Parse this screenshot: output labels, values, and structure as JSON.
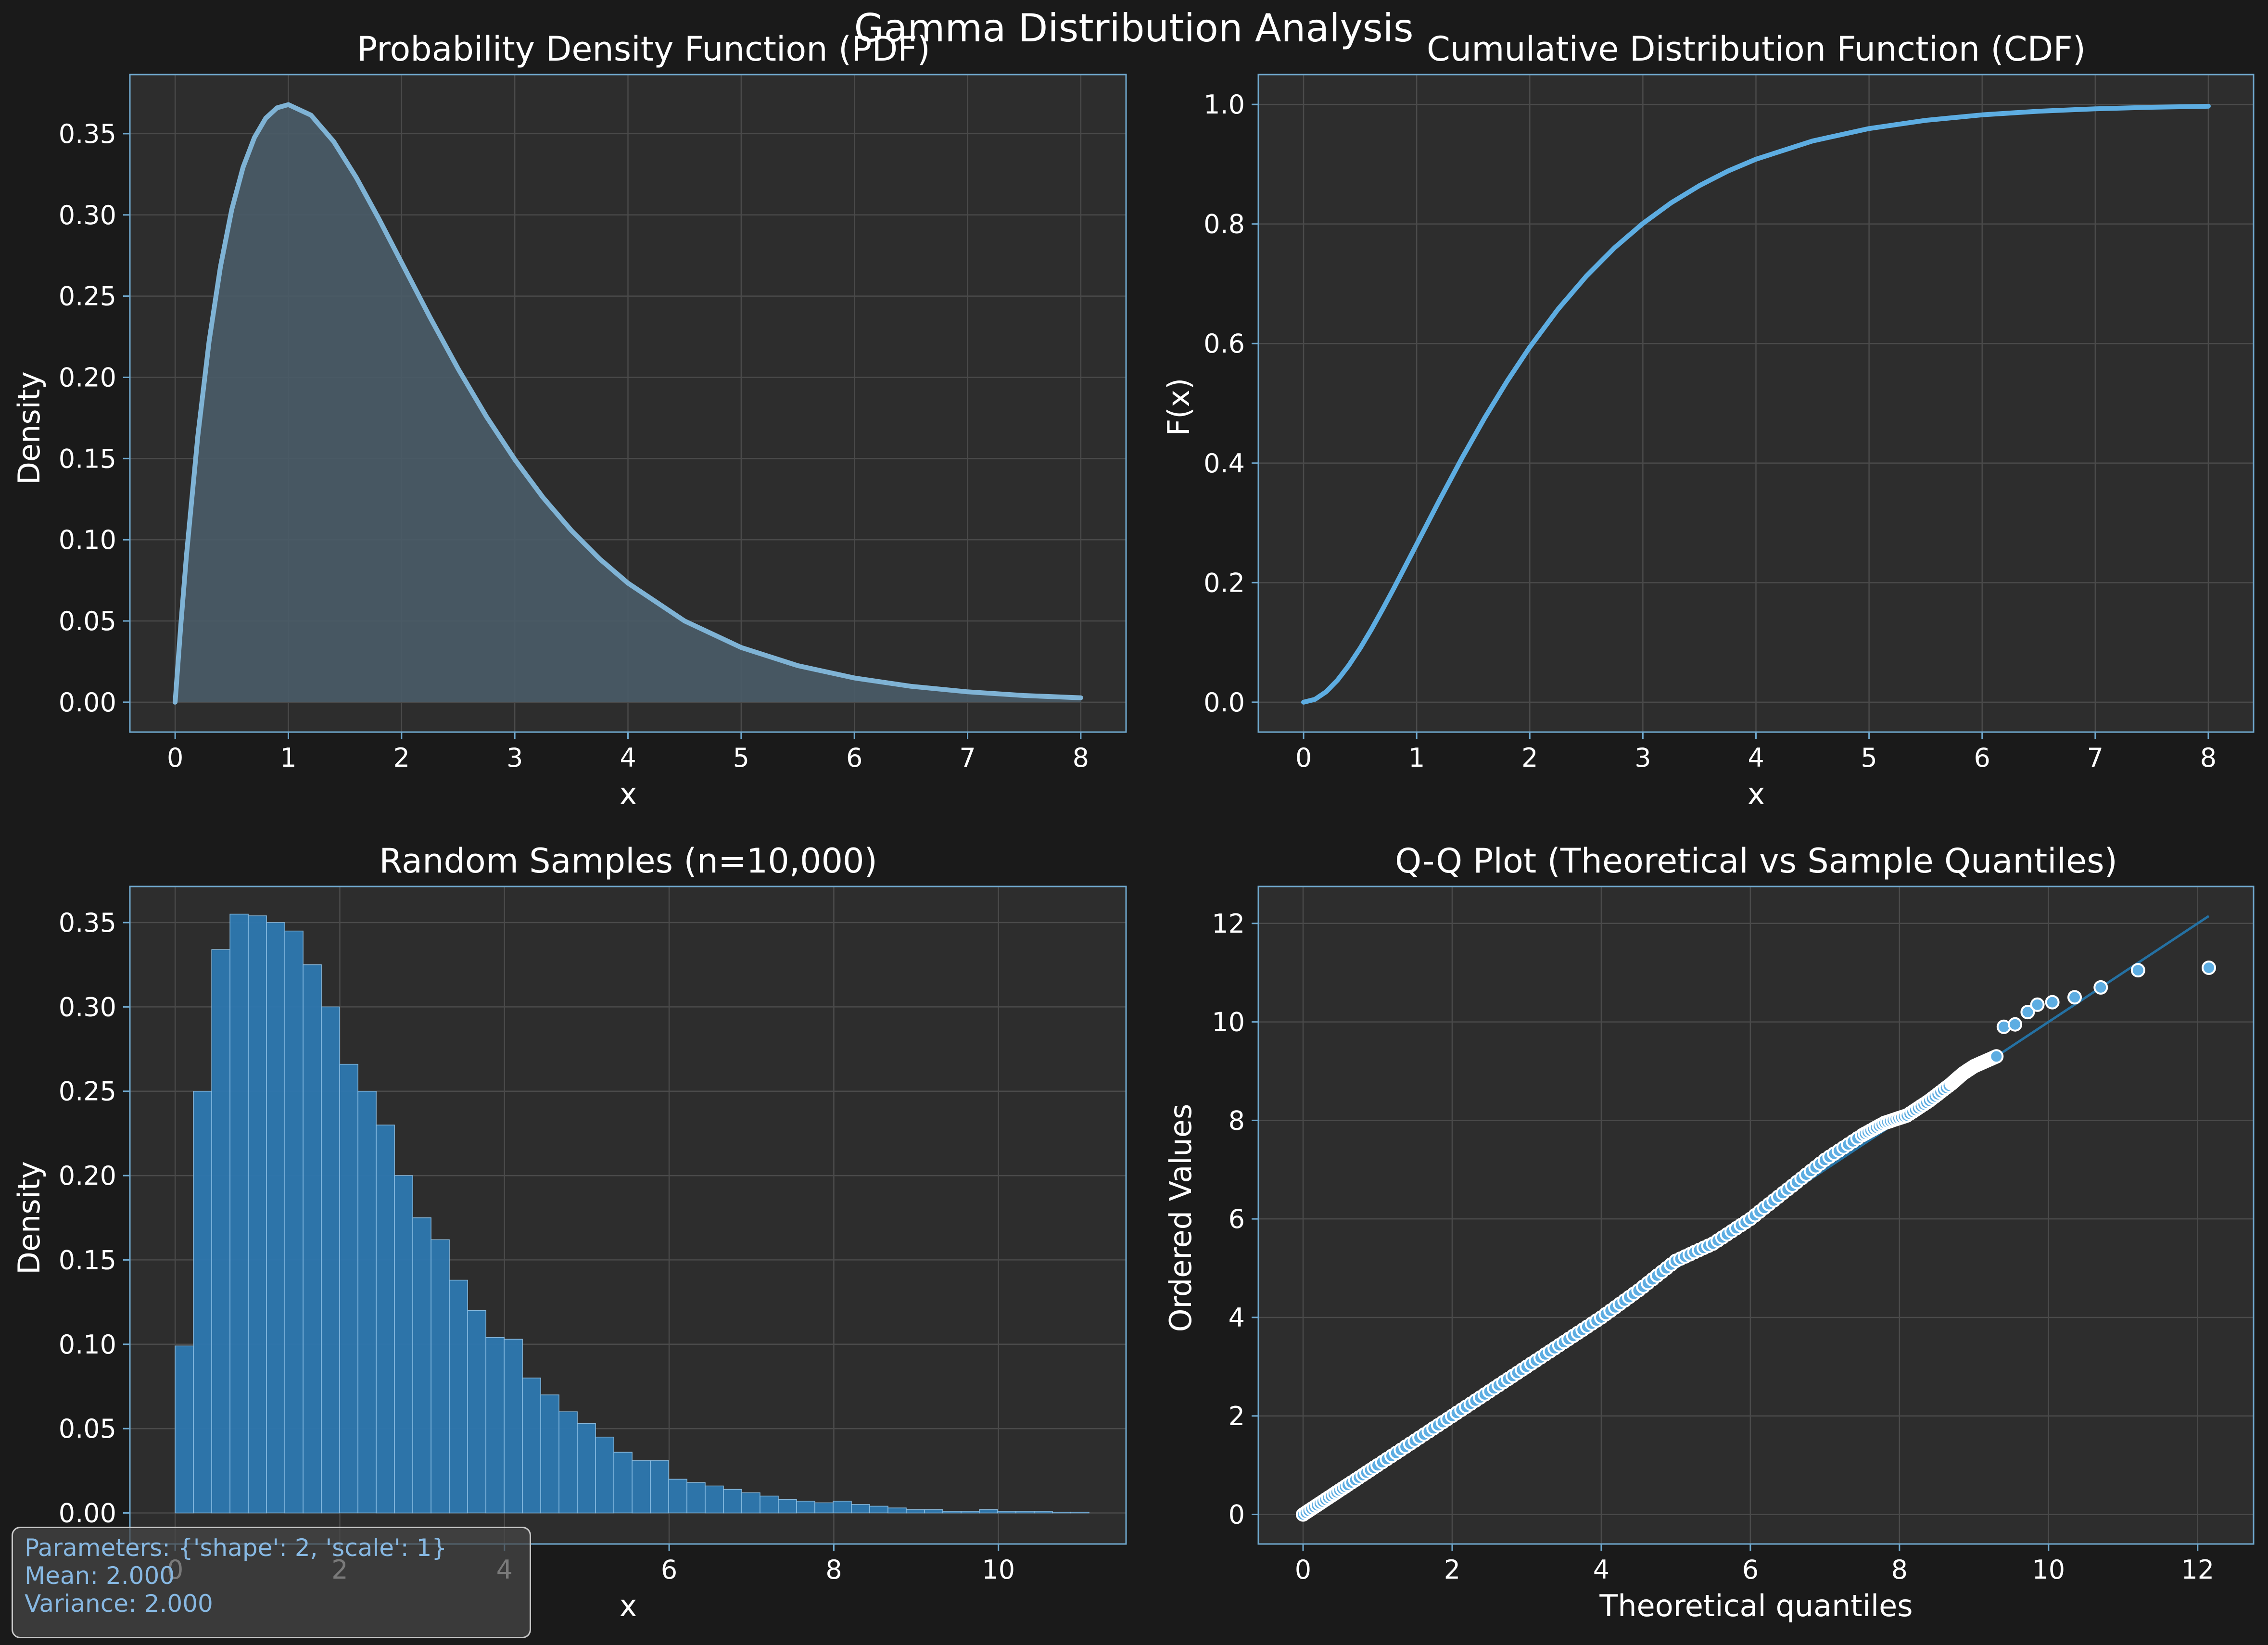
{
  "figure": {
    "suptitle": "Gamma Distribution Analysis",
    "colors": {
      "background": "#1a1a1a",
      "axes_face": "#2d2d2d",
      "spine": "#6fa7cc",
      "grid": "#4a4a4a",
      "pdf_line": "#7fb3d5",
      "pdf_fill": "#4a5c68",
      "cdf_line": "#5dade2",
      "hist_bar": "#2e78b0",
      "hist_edge": "#8ec1e6",
      "qq_line": "#2471a3",
      "qq_point": "#5dade2",
      "text": "#ffffff",
      "info_text": "#87b8e2"
    }
  },
  "info_box": {
    "line1": "Parameters: {'shape': 2, 'scale': 1}",
    "line2": "Mean: 2.000",
    "line3": "Variance: 2.000"
  },
  "chart_data": [
    {
      "id": "pdf",
      "type": "area",
      "title": "Probability Density Function (PDF)",
      "xlabel": "x",
      "ylabel": "Density",
      "xlim": [
        -0.4,
        8.4
      ],
      "ylim": [
        -0.0184,
        0.3864
      ],
      "xticks": [
        0,
        1,
        2,
        3,
        4,
        5,
        6,
        7,
        8
      ],
      "xticklabels": [
        "0",
        "1",
        "2",
        "3",
        "4",
        "5",
        "6",
        "7",
        "8"
      ],
      "yticks": [
        0,
        0.05,
        0.1,
        0.15,
        0.2,
        0.25,
        0.3,
        0.35
      ],
      "yticklabels": [
        "0.00",
        "0.05",
        "0.10",
        "0.15",
        "0.20",
        "0.25",
        "0.30",
        "0.35"
      ],
      "grid": true,
      "x": [
        0,
        0.05,
        0.1,
        0.2,
        0.3,
        0.4,
        0.5,
        0.6,
        0.7,
        0.8,
        0.9,
        1,
        1.2,
        1.4,
        1.6,
        1.8,
        2,
        2.25,
        2.5,
        2.75,
        3,
        3.25,
        3.5,
        3.75,
        4,
        4.5,
        5,
        5.5,
        6,
        6.5,
        7,
        7.5,
        8
      ],
      "y": [
        0,
        0.0476,
        0.0905,
        0.1637,
        0.2222,
        0.2681,
        0.3033,
        0.3293,
        0.3476,
        0.3595,
        0.3659,
        0.3679,
        0.3614,
        0.3452,
        0.323,
        0.2975,
        0.2707,
        0.2371,
        0.2052,
        0.1758,
        0.1494,
        0.126,
        0.1057,
        0.0882,
        0.0733,
        0.05,
        0.0337,
        0.0225,
        0.0149,
        0.0098,
        0.0064,
        0.0041,
        0.0027
      ]
    },
    {
      "id": "cdf",
      "type": "line",
      "title": "Cumulative Distribution Function (CDF)",
      "xlabel": "x",
      "ylabel": "F(x)",
      "xlim": [
        -0.4,
        8.4
      ],
      "ylim": [
        -0.05,
        1.05
      ],
      "xticks": [
        0,
        1,
        2,
        3,
        4,
        5,
        6,
        7,
        8
      ],
      "xticklabels": [
        "0",
        "1",
        "2",
        "3",
        "4",
        "5",
        "6",
        "7",
        "8"
      ],
      "yticks": [
        0,
        0.2,
        0.4,
        0.6,
        0.8,
        1.0
      ],
      "yticklabels": [
        "0.0",
        "0.2",
        "0.4",
        "0.6",
        "0.8",
        "1.0"
      ],
      "grid": true,
      "x": [
        0,
        0.1,
        0.2,
        0.3,
        0.4,
        0.5,
        0.6,
        0.7,
        0.8,
        0.9,
        1,
        1.2,
        1.4,
        1.6,
        1.8,
        2,
        2.25,
        2.5,
        2.75,
        3,
        3.25,
        3.5,
        3.75,
        4,
        4.5,
        5,
        5.5,
        6,
        6.5,
        7,
        7.5,
        8
      ],
      "y": [
        0,
        0.0047,
        0.0175,
        0.0369,
        0.0616,
        0.0902,
        0.1219,
        0.1558,
        0.1912,
        0.2275,
        0.2642,
        0.3374,
        0.4082,
        0.4751,
        0.5372,
        0.594,
        0.6575,
        0.7127,
        0.7603,
        0.8009,
        0.8355,
        0.8641,
        0.8883,
        0.9084,
        0.9389,
        0.9596,
        0.9734,
        0.9826,
        0.9887,
        0.9927,
        0.9953,
        0.997
      ]
    },
    {
      "id": "hist",
      "type": "bar",
      "title": "Random Samples (n=10,000)",
      "xlabel": "x",
      "ylabel": "Density",
      "xlim": [
        -0.55,
        11.55
      ],
      "ylim": [
        -0.0184,
        0.3714
      ],
      "xticks": [
        0,
        2,
        4,
        6,
        8,
        10
      ],
      "xticklabels": [
        "0",
        "2",
        "4",
        "6",
        "8",
        "10"
      ],
      "yticks": [
        0,
        0.05,
        0.1,
        0.15,
        0.2,
        0.25,
        0.3,
        0.35
      ],
      "yticklabels": [
        "0.00",
        "0.05",
        "0.10",
        "0.15",
        "0.20",
        "0.25",
        "0.30",
        "0.35"
      ],
      "grid": true,
      "bin_start": 0.0,
      "bin_width": 0.222,
      "values": [
        0.099,
        0.25,
        0.334,
        0.355,
        0.354,
        0.35,
        0.345,
        0.325,
        0.3,
        0.266,
        0.25,
        0.23,
        0.2,
        0.175,
        0.162,
        0.138,
        0.12,
        0.104,
        0.103,
        0.08,
        0.07,
        0.06,
        0.053,
        0.045,
        0.036,
        0.031,
        0.031,
        0.02,
        0.018,
        0.016,
        0.014,
        0.012,
        0.01,
        0.008,
        0.007,
        0.006,
        0.007,
        0.005,
        0.004,
        0.003,
        0.002,
        0.002,
        0.001,
        0.001,
        0.002,
        0.001,
        0.001,
        0.001,
        0.0005,
        0.0005
      ]
    },
    {
      "id": "qq",
      "type": "scatter",
      "title": "Q-Q Plot (Theoretical vs Sample Quantiles)",
      "xlabel": "Theoretical quantiles",
      "ylabel": "Ordered Values",
      "xlim": [
        -0.6,
        12.75
      ],
      "ylim": [
        -0.6,
        12.75
      ],
      "xticks": [
        0,
        2,
        4,
        6,
        8,
        10,
        12
      ],
      "xticklabels": [
        "0",
        "2",
        "4",
        "6",
        "8",
        "10",
        "12"
      ],
      "yticks": [
        0,
        2,
        4,
        6,
        8,
        10,
        12
      ],
      "yticklabels": [
        "0",
        "2",
        "4",
        "6",
        "8",
        "10",
        "12"
      ],
      "grid": true,
      "reference_line": {
        "x": [
          0,
          12.15
        ],
        "y": [
          0,
          12.15
        ]
      },
      "points": {
        "x": [
          0,
          0.3,
          0.6,
          1,
          1.5,
          2,
          2.5,
          3,
          3.5,
          4,
          4.5,
          5,
          5.5,
          6,
          6.5,
          7,
          7.5,
          7.8,
          8.1,
          8.4,
          8.7,
          8.85,
          9,
          9.15,
          9.3,
          9.4,
          9.55,
          9.72,
          9.85,
          10.05,
          10.35,
          10.7,
          11.2,
          12.15
        ],
        "y": [
          0,
          0.3,
          0.6,
          1,
          1.5,
          2,
          2.5,
          3,
          3.5,
          4,
          4.55,
          5.15,
          5.5,
          6,
          6.6,
          7.2,
          7.7,
          7.95,
          8.1,
          8.4,
          8.75,
          8.95,
          9.1,
          9.2,
          9.3,
          9.9,
          9.95,
          10.2,
          10.35,
          10.4,
          10.5,
          10.7,
          11.05,
          11.1
        ]
      }
    }
  ]
}
